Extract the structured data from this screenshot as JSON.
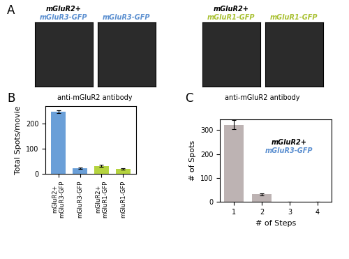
{
  "panel_labels": [
    "A",
    "B",
    "C"
  ],
  "images": [
    {
      "title_lines": [
        {
          "text": "mGluR2+",
          "color": "#000000"
        },
        {
          "text": "mGluR3-GFP",
          "color": "#5b8fd0"
        }
      ]
    },
    {
      "title_lines": [
        {
          "text": "mGluR3-GFP",
          "color": "#5b8fd0"
        }
      ]
    },
    {
      "title_lines": [
        {
          "text": "mGluR2+",
          "color": "#000000"
        },
        {
          "text": "mGluR1-GFP",
          "color": "#a8c030"
        }
      ]
    },
    {
      "title_lines": [
        {
          "text": "mGluR1-GFP",
          "color": "#a8c030"
        }
      ]
    }
  ],
  "image_captions": [
    "anti-mGluR2 antibody",
    "anti-mGluR2 antibody"
  ],
  "chart_data": [
    {
      "type": "bar",
      "y_label": "Total Spots/movie",
      "categories": [
        "mGluR2+\nmGluR3-GFP",
        "mGluR3-GFP",
        "mGluR2+\nmGluR1-GFP",
        "mGluR1-GFP"
      ],
      "values": [
        248,
        22,
        30,
        18
      ],
      "errors": [
        6,
        3,
        4,
        3
      ],
      "colors": [
        "#6a9fd8",
        "#6a9fd8",
        "#b5d33f",
        "#b5d33f"
      ],
      "ylim": [
        0,
        270
      ],
      "yticks": [
        0,
        100,
        200
      ]
    },
    {
      "type": "bar",
      "x_label": "# of Steps",
      "y_label": "# of Spots",
      "x": [
        1,
        2,
        3,
        4
      ],
      "values": [
        322,
        32,
        0,
        0
      ],
      "errors": [
        18,
        4,
        0,
        0
      ],
      "color": "#bdb3b3",
      "xlim": [
        0.5,
        4.5
      ],
      "xticks": [
        1,
        2,
        3,
        4
      ],
      "ylim": [
        0,
        345
      ],
      "yticks": [
        0,
        100,
        200,
        300
      ],
      "annotations": [
        {
          "text": "mGluR2+",
          "color": "#000000"
        },
        {
          "text": "mGluR3-GFP",
          "color": "#5b8fd0"
        }
      ]
    }
  ]
}
